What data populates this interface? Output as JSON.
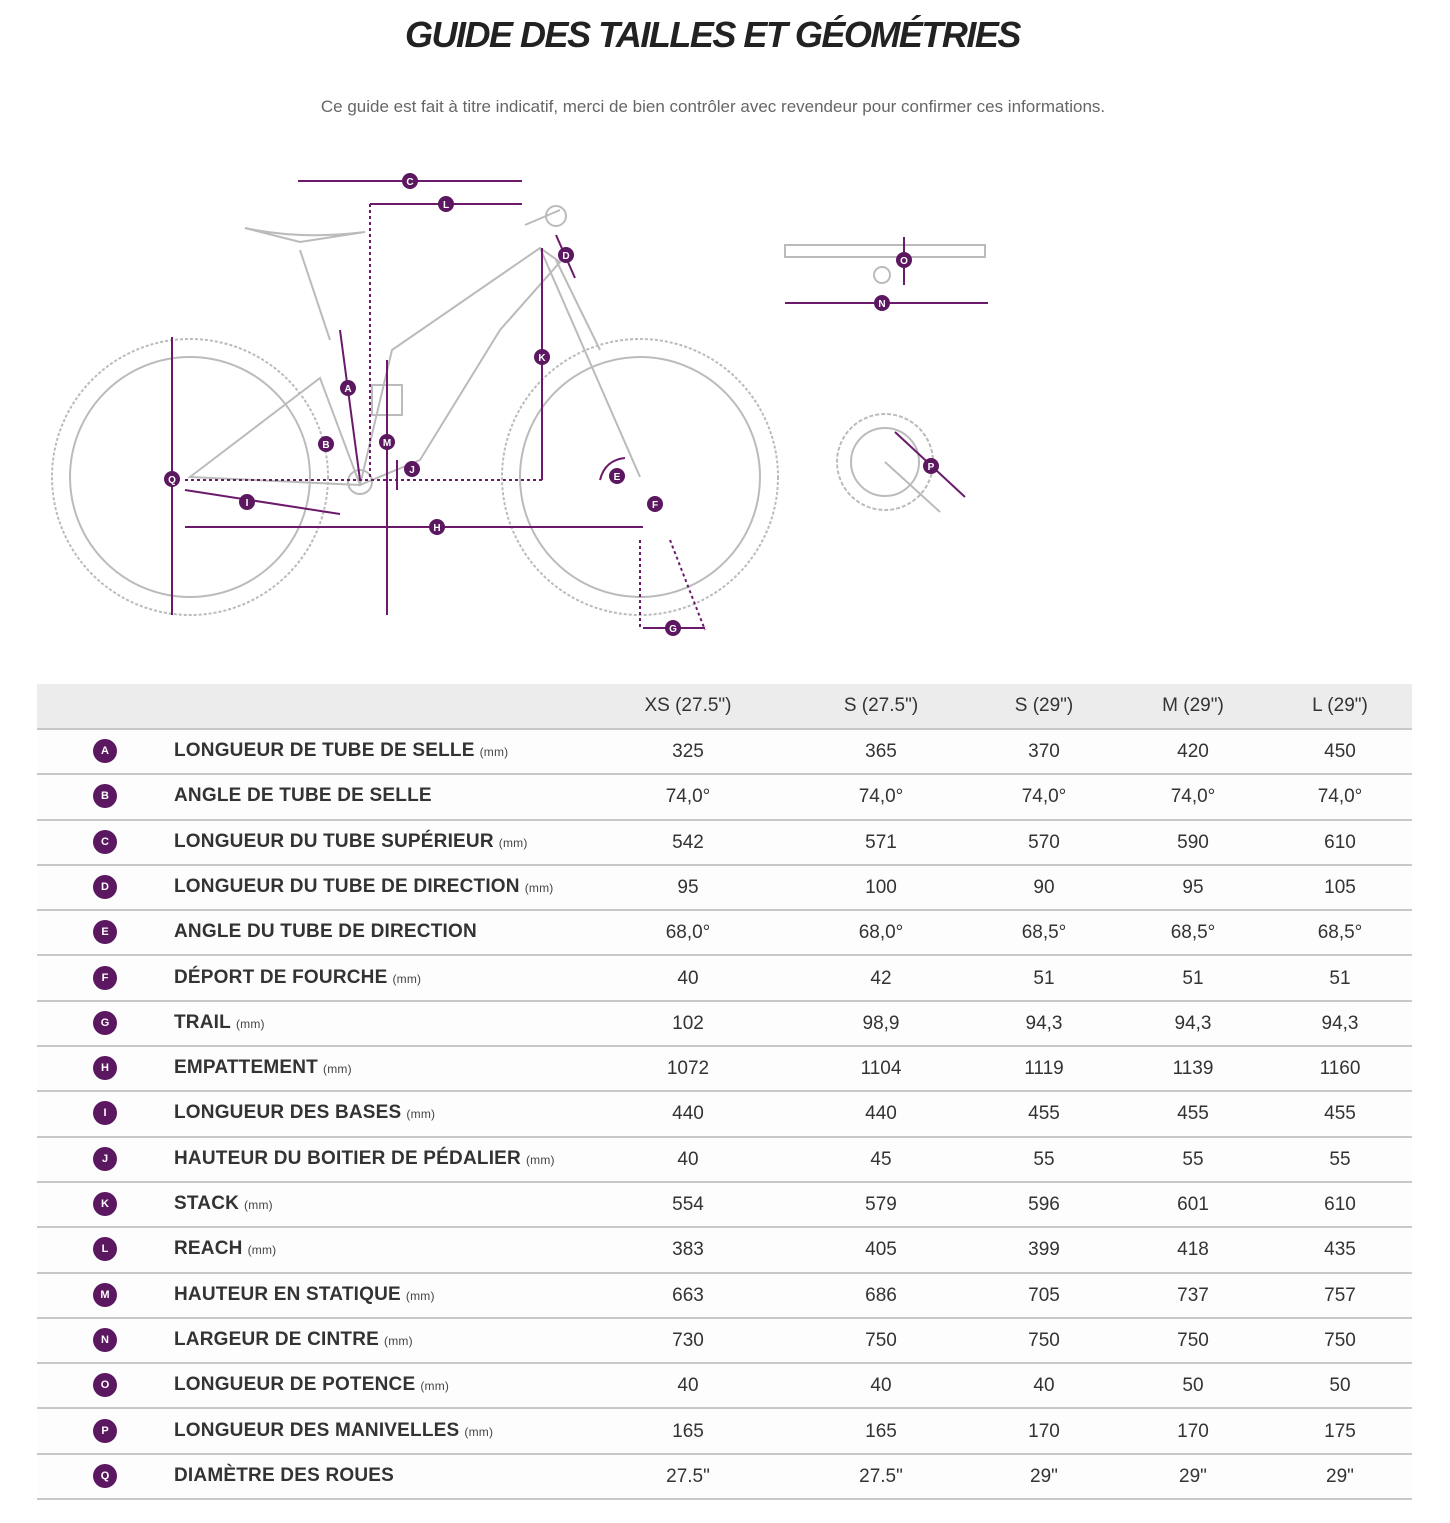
{
  "header": {
    "title": "GUIDE DES TAILLES ET GÉOMÉTRIES",
    "subtitle": "Ce guide est fait à titre indicatif, merci de bien contrôler avec revendeur pour confirmer ces informations."
  },
  "table": {
    "columns": [
      "XS (27.5\")",
      "S (27.5\")",
      "S (29\")",
      "M (29\")",
      "L (29\")"
    ],
    "rows": [
      {
        "letter": "A",
        "label": "LONGUEUR DE TUBE DE SELLE",
        "unit": "(mm)",
        "values": [
          "325",
          "365",
          "370",
          "420",
          "450"
        ]
      },
      {
        "letter": "B",
        "label": "ANGLE DE TUBE DE SELLE",
        "values": [
          "74,0°",
          "74,0°",
          "74,0°",
          "74,0°",
          "74,0°"
        ]
      },
      {
        "letter": "C",
        "label": "LONGUEUR DU TUBE SUPÉRIEUR",
        "unit": "(mm)",
        "values": [
          "542",
          "571",
          "570",
          "590",
          "610"
        ]
      },
      {
        "letter": "D",
        "label": "LONGUEUR DU TUBE DE DIRECTION",
        "unit": "(mm)",
        "values": [
          "95",
          "100",
          "90",
          "95",
          "105"
        ]
      },
      {
        "letter": "E",
        "label": "ANGLE DU TUBE DE DIRECTION",
        "values": [
          "68,0°",
          "68,0°",
          "68,5°",
          "68,5°",
          "68,5°"
        ]
      },
      {
        "letter": "F",
        "label": "DÉPORT DE FOURCHE",
        "unit": "(mm)",
        "values": [
          "40",
          "42",
          "51",
          "51",
          "51"
        ]
      },
      {
        "letter": "G",
        "label": "TRAIL",
        "unit": "(mm)",
        "values": [
          "102",
          "98,9",
          "94,3",
          "94,3",
          "94,3"
        ]
      },
      {
        "letter": "H",
        "label": "EMPATTEMENT",
        "unit": "(mm)",
        "values": [
          "1072",
          "1104",
          "1119",
          "1139",
          "1160"
        ]
      },
      {
        "letter": "I",
        "label": "LONGUEUR DES BASES",
        "unit": "(mm)",
        "values": [
          "440",
          "440",
          "455",
          "455",
          "455"
        ]
      },
      {
        "letter": "J",
        "label": "HAUTEUR DU BOITIER DE PÉDALIER",
        "unit": "(mm)",
        "values": [
          "40",
          "45",
          "55",
          "55",
          "55"
        ]
      },
      {
        "letter": "K",
        "label": "STACK",
        "unit": "(mm)",
        "values": [
          "554",
          "579",
          "596",
          "601",
          "610"
        ]
      },
      {
        "letter": "L",
        "label": "REACH",
        "unit": "(mm)",
        "values": [
          "383",
          "405",
          "399",
          "418",
          "435"
        ]
      },
      {
        "letter": "M",
        "label": "HAUTEUR EN STATIQUE",
        "unit": "(mm)",
        "values": [
          "663",
          "686",
          "705",
          "737",
          "757"
        ]
      },
      {
        "letter": "N",
        "label": "LARGEUR DE CINTRE",
        "unit": "(mm)",
        "values": [
          "730",
          "750",
          "750",
          "750",
          "750"
        ]
      },
      {
        "letter": "O",
        "label": "LONGUEUR DE POTENCE",
        "unit": "(mm)",
        "values": [
          "40",
          "40",
          "40",
          "50",
          "50"
        ]
      },
      {
        "letter": "P",
        "label": "LONGUEUR DES MANIVELLES",
        "unit": "(mm)",
        "values": [
          "165",
          "165",
          "170",
          "170",
          "175"
        ]
      },
      {
        "letter": "Q",
        "label": "DIAMÈTRE DES ROUES",
        "values": [
          "27.5\"",
          "27.5\"",
          "29\"",
          "29\"",
          "29\""
        ]
      }
    ]
  }
}
